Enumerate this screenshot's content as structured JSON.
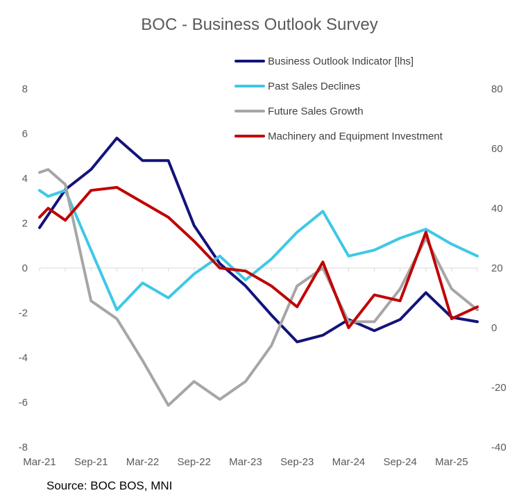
{
  "chart_data": {
    "type": "line",
    "title": "BOC - Business Outlook Survey",
    "source": "Source: BOC BOS, MNI",
    "x": [
      "Mar-21",
      "Jun-21",
      "Sep-21",
      "Dec-21",
      "Mar-22",
      "Jun-22",
      "Sep-22",
      "Dec-22",
      "Mar-23",
      "Jun-23",
      "Sep-23",
      "Dec-23",
      "Mar-24",
      "Jun-24",
      "Sep-24",
      "Dec-24",
      "Mar-25",
      "Jun-25"
    ],
    "x_tick_labels": [
      "Mar-21",
      "Sep-21",
      "Mar-22",
      "Sep-22",
      "Mar-23",
      "Sep-23",
      "Mar-24",
      "Sep-24",
      "Mar-25"
    ],
    "y_left": {
      "ylim": [
        -8,
        8
      ],
      "ticks": [
        "-8",
        "-6",
        "-4",
        "-2",
        "0",
        "2",
        "4",
        "6",
        "8"
      ]
    },
    "y_right": {
      "ylim": [
        -40,
        80
      ],
      "ticks": [
        "-40",
        "-20",
        "0",
        "20",
        "40",
        "60",
        "80"
      ]
    },
    "legend_position": "top-right",
    "series": [
      {
        "name": "Business Outlook Indicator [lhs]",
        "axis": "left",
        "color": "#13137a",
        "x": [
          "Mar-21",
          "Jun-21",
          "Sep-21",
          "Dec-21",
          "Mar-22",
          "Jun-22",
          "Sep-22",
          "Dec-22",
          "Mar-23",
          "Jun-23",
          "Sep-23",
          "Dec-23",
          "Mar-24",
          "Jun-24",
          "Sep-24",
          "Dec-24",
          "Mar-25",
          "Jun-25"
        ],
        "values": [
          1.8,
          3.5,
          4.4,
          5.8,
          4.8,
          4.8,
          1.9,
          0.2,
          -0.8,
          -2.1,
          -3.3,
          -3.0,
          -2.3,
          -2.8,
          -2.3,
          -1.1,
          -2.2,
          -2.4
        ]
      },
      {
        "name": "Past Sales Declines",
        "axis": "right",
        "color": "#3ec8e6",
        "x": [
          "Mar-21",
          "Apr-21",
          "Jun-21",
          "Sep-21",
          "Dec-21",
          "Mar-22",
          "Jun-22",
          "Sep-22",
          "Dec-22",
          "Mar-23",
          "Jun-23",
          "Sep-23",
          "Dec-23",
          "Mar-24",
          "Jun-24",
          "Sep-24",
          "Dec-24",
          "Mar-25",
          "Jun-25"
        ],
        "values": [
          46,
          44,
          46,
          26,
          6,
          15,
          10,
          18,
          24,
          16,
          23,
          32,
          39,
          24,
          26,
          30,
          33,
          28,
          24
        ]
      },
      {
        "name": "Future Sales Growth",
        "axis": "right",
        "color": "#a6a6a6",
        "x": [
          "Mar-21",
          "Apr-21",
          "Jun-21",
          "Sep-21",
          "Dec-21",
          "Mar-22",
          "Jun-22",
          "Sep-22",
          "Dec-22",
          "Mar-23",
          "Jun-23",
          "Sep-23",
          "Dec-23",
          "Mar-24",
          "Jun-24",
          "Sep-24",
          "Dec-24",
          "Mar-25",
          "Jun-25"
        ],
        "values": [
          52,
          53,
          48,
          9,
          3,
          -11,
          -26,
          -18,
          -24,
          -18,
          -6,
          14,
          20,
          2,
          2,
          13,
          30,
          13,
          6
        ]
      },
      {
        "name": "Machinery and Equipment Investment",
        "axis": "right",
        "color": "#c00000",
        "x": [
          "Mar-21",
          "Apr-21",
          "Jun-21",
          "Sep-21",
          "Dec-21",
          "Mar-22",
          "Jun-22",
          "Sep-22",
          "Dec-22",
          "Mar-23",
          "Jun-23",
          "Sep-23",
          "Dec-23",
          "Mar-24",
          "Jun-24",
          "Sep-24",
          "Dec-24",
          "Mar-25",
          "Jun-25"
        ],
        "values": [
          37,
          40,
          36,
          46,
          47,
          42,
          37,
          29,
          20,
          19,
          14,
          7,
          22,
          0,
          11,
          9,
          32,
          3,
          7
        ]
      }
    ]
  }
}
